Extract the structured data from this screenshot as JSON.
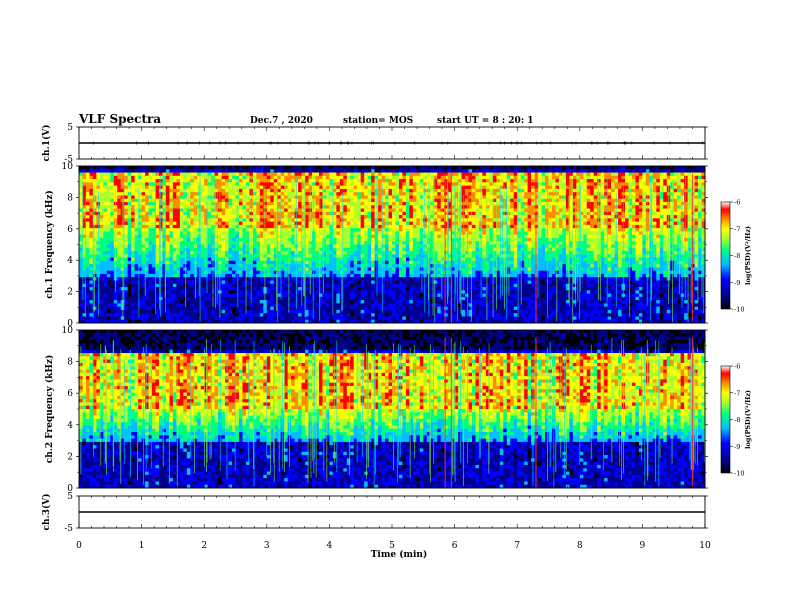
{
  "header": {
    "title": "VLF Spectra",
    "date": "Dec.7 , 2020",
    "station": "station= MOS",
    "start": "start UT = 8 : 20: 1"
  },
  "chart_data": [
    {
      "type": "line",
      "panel": "ch1-waveform",
      "ylabel": "ch.1(V)",
      "ylim": [
        -5,
        5
      ],
      "yticks": [
        "5",
        "-5"
      ],
      "series": [
        {
          "values": [
            0,
            0
          ]
        }
      ],
      "grid": false
    },
    {
      "type": "heatmap",
      "panel": "ch1-spectrogram",
      "ylabel": "ch.1 Frequency (kHz)",
      "ylim": [
        0,
        10
      ],
      "yticks": [
        "0",
        "2",
        "4",
        "6",
        "8",
        "10"
      ],
      "colorbar": {
        "label": "log(PSD)(V²/Hz)",
        "ticks": [
          "-6",
          "-7",
          "-8",
          "-9",
          "-10"
        ],
        "range": [
          -10,
          -6
        ]
      },
      "intense_band_khz": [
        6,
        9.5
      ],
      "spikes_min": [
        5.85,
        5.95,
        7.3,
        9.8
      ]
    },
    {
      "type": "heatmap",
      "panel": "ch2-spectrogram",
      "ylabel": "ch.2 Frequency (kHz)",
      "ylim": [
        0,
        10
      ],
      "yticks": [
        "0",
        "2",
        "4",
        "6",
        "8",
        "10"
      ],
      "colorbar": {
        "label": "log(PSD)(V²/Hz)",
        "ticks": [
          "-6",
          "-7",
          "-8",
          "-9",
          "-10"
        ],
        "range": [
          -10,
          -6
        ]
      },
      "intense_band_khz": [
        5,
        8.5
      ],
      "spikes_min": [
        5.85,
        5.95,
        7.3,
        9.8
      ]
    },
    {
      "type": "line",
      "panel": "ch3-waveform",
      "ylabel": "ch.3(V)",
      "ylim": [
        -5,
        5
      ],
      "yticks": [
        "5",
        "-5"
      ],
      "series": [
        {
          "values": [
            0,
            0
          ]
        }
      ],
      "grid": false
    }
  ],
  "xaxis": {
    "label": "Time (min)",
    "ticks": [
      "0",
      "1",
      "2",
      "3",
      "4",
      "5",
      "6",
      "7",
      "8",
      "9",
      "10"
    ],
    "xlim": [
      0,
      10
    ]
  },
  "colors": {
    "scale": [
      "#000000",
      "#00008b",
      "#0000ff",
      "#00bfff",
      "#00ff7f",
      "#adff2f",
      "#ffff00",
      "#ff8c00",
      "#ff0000",
      "#ffffff"
    ]
  }
}
